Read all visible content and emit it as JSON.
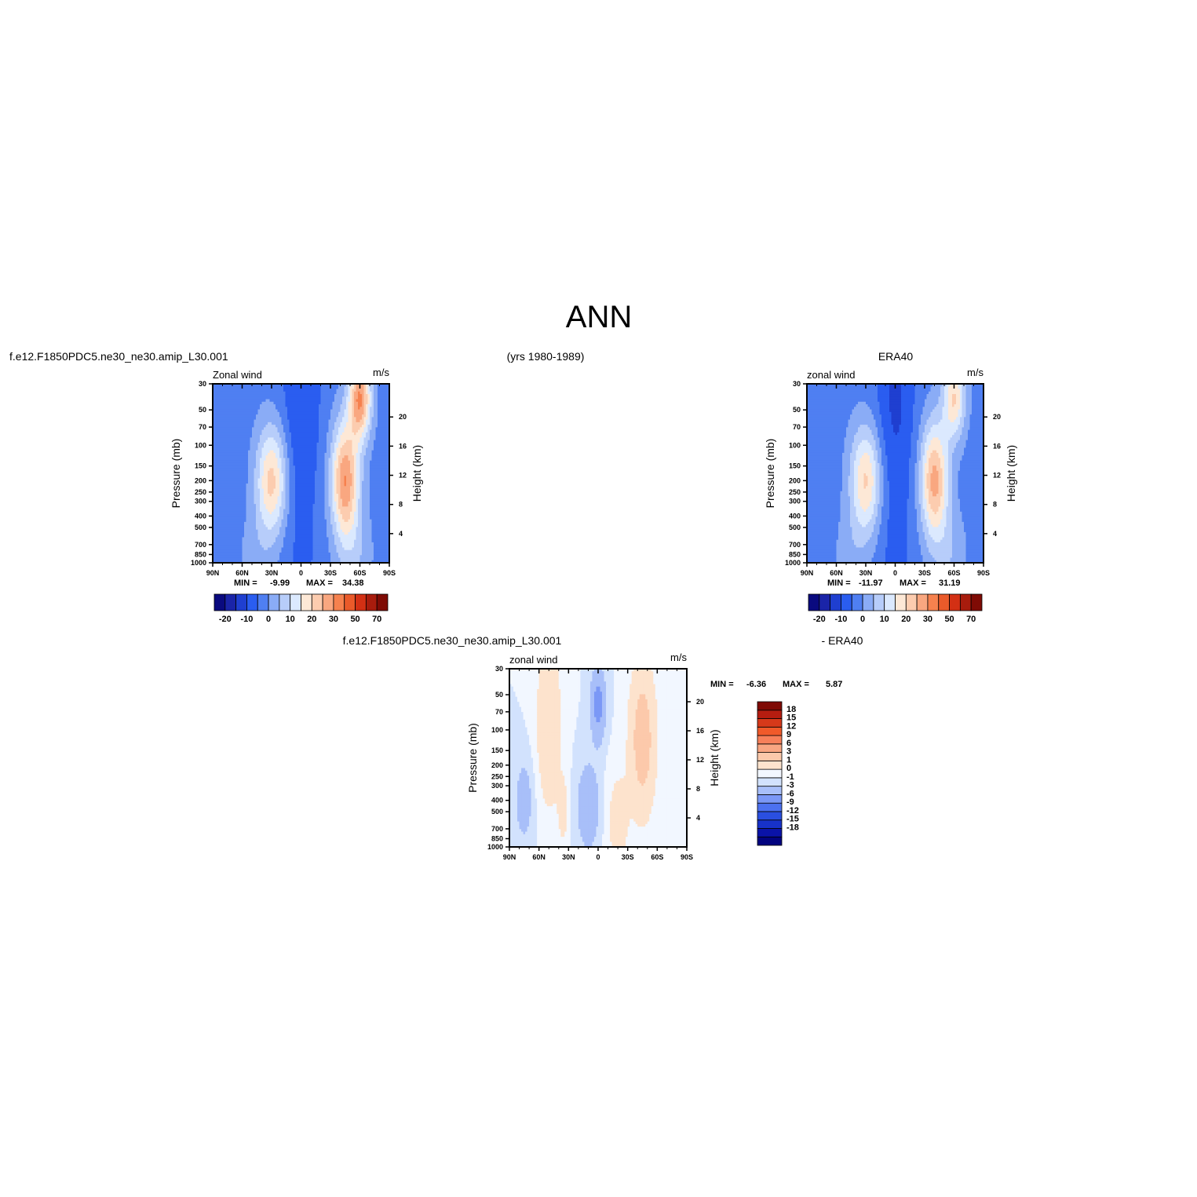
{
  "title": "ANN",
  "header": {
    "left": "f.e12.F1850PDC5.ne30_ne30.amip_L30.001",
    "center": "(yrs 1980-1989)",
    "right": "ERA40",
    "diff_left": "f.e12.F1850PDC5.ne30_ne30.amip_L30.001",
    "diff_right": "- ERA40"
  },
  "colors": {
    "full_scale": [
      "#0a0a7f",
      "#1a24a8",
      "#1f3fd0",
      "#2a5df0",
      "#4f7ff2",
      "#8aacf6",
      "#b7cdfa",
      "#dbe9fe",
      "#fde8d6",
      "#fcccaf",
      "#f9a780",
      "#f6814e",
      "#ea5a2a",
      "#d33014",
      "#a81c0d",
      "#7f0b05"
    ],
    "diff_scale": [
      "#02037f",
      "#0a13a8",
      "#1732c9",
      "#2a4fe0",
      "#4c71f0",
      "#7b98f6",
      "#a8bff9",
      "#d2e2fd",
      "#f2f7ff",
      "#fde3cd",
      "#fcc9ab",
      "#f9a682",
      "#f7805a",
      "#f05a2a",
      "#d6391a",
      "#b51d10",
      "#7f0a05"
    ]
  },
  "chart_data": [
    {
      "type": "heatmap",
      "name": "model",
      "label": "Zonal wind",
      "units": "m/s",
      "ylabel": "Pressure (mb)",
      "ylabel_right": "Height (km)",
      "x_ticks": [
        "90N",
        "60N",
        "30N",
        "0",
        "30S",
        "60S",
        "90S"
      ],
      "x_range": [
        90,
        -90
      ],
      "y_ticks": [
        30,
        50,
        70,
        100,
        150,
        200,
        250,
        300,
        400,
        500,
        700,
        850,
        1000
      ],
      "y_range": [
        30,
        1000
      ],
      "y_scale": "log",
      "height_ticks": [
        20,
        16,
        12,
        8,
        4
      ],
      "min_label": "MIN =",
      "min_value": "-9.99",
      "max_label": "MAX =",
      "max_value": "34.38",
      "colorbar_ticks": [
        "-20",
        "-10",
        "0",
        "10",
        "20",
        "30",
        "50",
        "70"
      ],
      "levels": [
        -25,
        -20,
        -15,
        -10,
        -5,
        0,
        5,
        10,
        15,
        20,
        25,
        30,
        40,
        50,
        60,
        70,
        80
      ],
      "features": {
        "nh_jet": {
          "lat": 30,
          "p": 200,
          "peak": 24
        },
        "sh_jet": {
          "lat": -45,
          "p": 200,
          "peak": 32
        },
        "trop_easterly": {
          "value": -8
        },
        "sh_strat_jet": {
          "lat": -60,
          "p": 40,
          "peak": 32
        },
        "background": -2
      }
    },
    {
      "type": "heatmap",
      "name": "obs",
      "label": "zonal wind",
      "units": "m/s",
      "ylabel": "Pressure (mb)",
      "ylabel_right": "Height (km)",
      "x_ticks": [
        "90N",
        "60N",
        "30N",
        "0",
        "30S",
        "60S",
        "90S"
      ],
      "x_range": [
        90,
        -90
      ],
      "y_ticks": [
        30,
        50,
        70,
        100,
        150,
        200,
        250,
        300,
        400,
        500,
        700,
        850,
        1000
      ],
      "y_range": [
        30,
        1000
      ],
      "y_scale": "log",
      "height_ticks": [
        20,
        16,
        12,
        8,
        4
      ],
      "min_label": "MIN =",
      "min_value": "-11.97",
      "max_label": "MAX =",
      "max_value": "31.19",
      "colorbar_ticks": [
        "-20",
        "-10",
        "0",
        "10",
        "20",
        "30",
        "50",
        "70"
      ],
      "levels": [
        -25,
        -20,
        -15,
        -10,
        -5,
        0,
        5,
        10,
        15,
        20,
        25,
        30,
        40,
        50,
        60,
        70,
        80
      ],
      "features": {
        "nh_jet": {
          "lat": 30,
          "p": 200,
          "peak": 23
        },
        "sh_jet": {
          "lat": -40,
          "p": 200,
          "peak": 29
        },
        "trop_easterly": {
          "value": -9
        },
        "sh_strat_jet": {
          "lat": -60,
          "p": 40,
          "peak": 22
        },
        "background": -2
      }
    },
    {
      "type": "heatmap",
      "name": "diff",
      "label": "zonal wind",
      "units": "m/s",
      "ylabel": "Pressure (mb)",
      "ylabel_right": "Height (km)",
      "x_ticks": [
        "90N",
        "60N",
        "30N",
        "0",
        "30S",
        "60S",
        "90S"
      ],
      "x_range": [
        90,
        -90
      ],
      "y_ticks": [
        30,
        50,
        70,
        100,
        150,
        200,
        250,
        300,
        400,
        500,
        700,
        850,
        1000
      ],
      "y_range": [
        30,
        1000
      ],
      "y_scale": "log",
      "height_ticks": [
        20,
        16,
        12,
        8,
        4
      ],
      "min_label": "MIN =",
      "min_value": "-6.36",
      "max_label": "MAX =",
      "max_value": "5.87",
      "colorbar_ticks": [
        "18",
        "15",
        "12",
        "9",
        "6",
        "3",
        "1",
        "0",
        "-1",
        "-3",
        "-6",
        "-9",
        "-12",
        "-15",
        "-18"
      ],
      "levels": [
        -21,
        -18,
        -15,
        -12,
        -9,
        -6,
        -3,
        -1,
        0,
        1,
        3,
        6,
        9,
        12,
        15,
        18,
        21
      ]
    }
  ]
}
